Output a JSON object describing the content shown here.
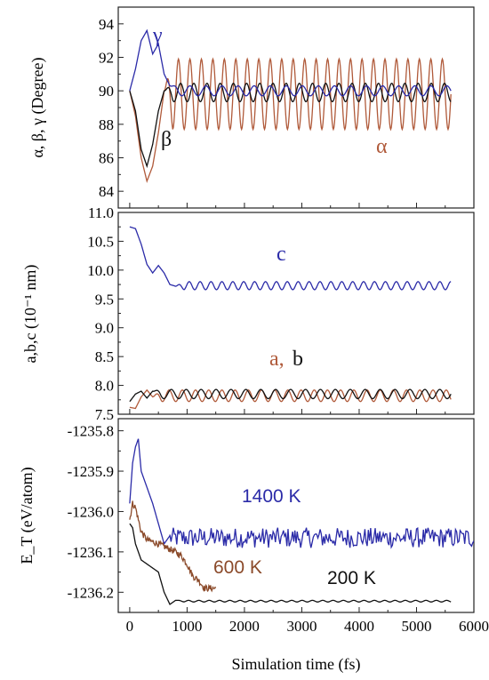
{
  "chart_data": [
    {
      "type": "line",
      "panel": "angles",
      "ylabel": "α, β, γ (Degree)",
      "ylim": [
        83,
        95
      ],
      "yticks": [
        84,
        86,
        88,
        90,
        92,
        94
      ],
      "xlim": [
        -200,
        6000
      ],
      "grid": false,
      "colors": {
        "alpha": "#b05a3a",
        "beta": "#111111",
        "gamma": "#2b2ba8"
      },
      "series": [
        {
          "name": "α",
          "start": {
            "x": [
              0,
              100,
              200,
              300,
              400,
              500,
              600
            ],
            "y": [
              90,
              88.5,
              86,
              84.6,
              85.5,
              87.5,
              90
            ]
          },
          "oscillation": {
            "mean": 89.8,
            "amplitude": 2.1,
            "period_fs": 200,
            "x_range": [
              600,
              5600
            ]
          }
        },
        {
          "name": "β",
          "start": {
            "x": [
              0,
              100,
              200,
              300,
              400,
              500,
              600
            ],
            "y": [
              90,
              88.8,
              86.5,
              85.5,
              86.8,
              88.8,
              90
            ]
          },
          "oscillation": {
            "mean": 89.9,
            "amplitude": 0.55,
            "period_fs": 230,
            "x_range": [
              600,
              5600
            ]
          }
        },
        {
          "name": "γ",
          "start": {
            "x": [
              0,
              100,
              200,
              300,
              400,
              500,
              600,
              700
            ],
            "y": [
              90,
              91.3,
              93,
              93.6,
              92.2,
              92.8,
              91,
              90.3
            ]
          },
          "oscillation": {
            "mean": 90.0,
            "amplitude": 0.3,
            "period_fs": 280,
            "x_range": [
              700,
              5600
            ]
          }
        }
      ]
    },
    {
      "type": "line",
      "panel": "lattice",
      "ylabel": "a,b,c (10⁻¹ nm)",
      "ylim": [
        7.5,
        11.0
      ],
      "yticks": [
        7.5,
        8.0,
        8.5,
        9.0,
        9.5,
        10.0,
        10.5,
        11.0
      ],
      "xlim": [
        -200,
        6000
      ],
      "grid": false,
      "colors": {
        "c": "#2b2ba8",
        "a": "#b05a3a",
        "b": "#111111"
      },
      "series": [
        {
          "name": "c",
          "start": {
            "x": [
              0,
              100,
              200,
              300,
              400,
              500,
              600,
              700,
              800
            ],
            "y": [
              10.75,
              10.72,
              10.45,
              10.1,
              9.95,
              10.08,
              9.95,
              9.75,
              9.72
            ]
          },
          "oscillation": {
            "mean": 9.73,
            "amplitude": 0.07,
            "period_fs": 190,
            "x_range": [
              800,
              5600
            ]
          }
        },
        {
          "name": "a",
          "start": {
            "x": [
              0,
              100,
              200,
              300,
              400
            ],
            "y": [
              7.62,
              7.6,
              7.8,
              7.92,
              7.8
            ]
          },
          "oscillation": {
            "mean": 7.82,
            "amplitude": 0.1,
            "period_fs": 230,
            "x_range": [
              400,
              5600
            ]
          }
        },
        {
          "name": "b",
          "start": {
            "x": [
              0,
              100,
              200,
              300,
              400
            ],
            "y": [
              7.72,
              7.85,
              7.9,
              7.78,
              7.9
            ]
          },
          "oscillation": {
            "mean": 7.85,
            "amplitude": 0.08,
            "period_fs": 260,
            "x_range": [
              400,
              5600
            ]
          }
        }
      ]
    },
    {
      "type": "line",
      "panel": "energy",
      "ylabel": "E_T (eV/atom)",
      "xlabel": "Simulation time (fs)",
      "ylim": [
        -1236.25,
        -1235.77
      ],
      "yticks": [
        -1235.8,
        -1235.9,
        -1236.0,
        -1236.1,
        -1236.2
      ],
      "ytick_labels": [
        "-1235.8",
        "-1235.9",
        "-1236.0",
        "-1236.1",
        "-1236.2"
      ],
      "xlim": [
        -200,
        6000
      ],
      "xticks": [
        0,
        1000,
        2000,
        3000,
        4000,
        5000,
        6000
      ],
      "grid": false,
      "colors": {
        "1400 K": "#2b2ba8",
        "600 K": "#8b4a2a",
        "200 K": "#111111"
      },
      "series": [
        {
          "name": "1400 K",
          "start": {
            "x": [
              0,
              50,
              100,
              150,
              200,
              300,
              400,
              500,
              600,
              700
            ],
            "y": [
              -1235.98,
              -1235.88,
              -1235.84,
              -1235.82,
              -1235.9,
              -1235.94,
              -1235.98,
              -1236.03,
              -1236.08,
              -1236.06
            ]
          },
          "noise": {
            "mean": -1236.065,
            "amplitude": 0.025,
            "x_range": [
              700,
              6000
            ]
          }
        },
        {
          "name": "600 K",
          "start": {
            "x": [
              0,
              50,
              100,
              200,
              300,
              500,
              800,
              900,
              1000,
              1100,
              1200,
              1300,
              1400,
              1500
            ],
            "y": [
              -1236.02,
              -1235.98,
              -1235.99,
              -1236.05,
              -1236.07,
              -1236.08,
              -1236.1,
              -1236.11,
              -1236.13,
              -1236.16,
              -1236.17,
              -1236.19,
              -1236.19,
              -1236.19
            ]
          },
          "noise": {
            "mean": 0,
            "amplitude": 0.008,
            "x_range": [
              0,
              1500
            ]
          }
        },
        {
          "name": "200 K",
          "start": {
            "x": [
              0,
              50,
              100,
              200,
              300,
              400,
              500,
              600,
              700,
              800
            ],
            "y": [
              -1236.03,
              -1236.04,
              -1236.08,
              -1236.12,
              -1236.13,
              -1236.14,
              -1236.15,
              -1236.2,
              -1236.23,
              -1236.22
            ]
          },
          "oscillation": {
            "mean": -1236.222,
            "amplitude": 0.002,
            "period_fs": 180,
            "x_range": [
              800,
              5600
            ]
          }
        }
      ]
    }
  ],
  "labels": {
    "gamma": "γ",
    "beta": "β",
    "alpha": "α",
    "c": "c",
    "a": "a,",
    "b": "b",
    "t1400": "1400 K",
    "t600": "600 K",
    "t200": "200 K"
  }
}
